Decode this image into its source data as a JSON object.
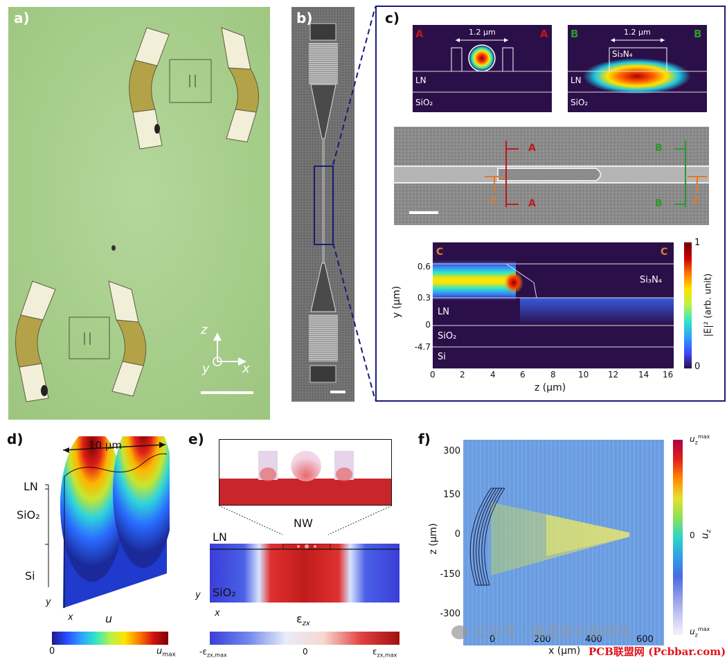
{
  "panel_labels": {
    "a": "a)",
    "b": "b)",
    "c": "c)",
    "d": "d)",
    "e": "e)",
    "f": "f)"
  },
  "panel_a": {
    "axes": {
      "z": "z",
      "y": "y",
      "x": "x"
    }
  },
  "panel_c": {
    "mode_A": {
      "marker_left": "A",
      "marker_right": "A",
      "width_label": "1.2 μm",
      "layers": [
        "LN",
        "SiO₂"
      ]
    },
    "mode_B": {
      "marker_left": "B",
      "marker_right": "B",
      "width_label": "1.2 μm",
      "waveguide": "Si₃N₄",
      "layers": [
        "LN",
        "SiO₂"
      ]
    },
    "sem_markers": {
      "A": "A",
      "B": "B",
      "C": "C"
    },
    "field_plot": {
      "marker_left": "C",
      "marker_right": "C",
      "ylabel": "y (μm)",
      "xlabel": "z (μm)",
      "x_ticks": [
        "0",
        "2",
        "4",
        "6",
        "8",
        "10",
        "12",
        "14",
        "16"
      ],
      "y_ticks": [
        "0.6",
        "0.3",
        "0",
        "-4.7"
      ],
      "layers": [
        "Si₃N₄",
        "LN",
        "SiO₂",
        "Si"
      ],
      "colorbar_label": "|E|² (arb. unit)",
      "colorbar_ticks": [
        "1",
        "0"
      ]
    }
  },
  "panel_d": {
    "width_label": "10 μm",
    "layers": [
      "LN",
      "SiO₂",
      "Si"
    ],
    "axes": {
      "y": "y",
      "x": "x"
    },
    "quantity": "u",
    "colorbar_min": "0",
    "colorbar_max": "u",
    "colorbar_max_sub": "max"
  },
  "panel_e": {
    "nw_label": "NW",
    "layers": [
      "LN",
      "SiO₂"
    ],
    "axes": {
      "y": "y",
      "x": "x"
    },
    "quantity": "ε",
    "quantity_sub": "zx",
    "colorbar_min": "-ε",
    "colorbar_min_sub": "zx,max",
    "colorbar_mid": "0",
    "colorbar_max": "ε",
    "colorbar_max_sub": "zx,max"
  },
  "panel_f": {
    "ylabel": "z (μm)",
    "xlabel": "x (μm)",
    "y_ticks": [
      "300",
      "150",
      "0",
      "-150",
      "-300"
    ],
    "x_ticks": [
      "0",
      "200",
      "400",
      "600"
    ],
    "colorbar_label": "u",
    "colorbar_label_sub": "z",
    "colorbar_top": "u",
    "colorbar_top_sub": "z",
    "colorbar_top_sup": "max",
    "colorbar_mid": "0",
    "colorbar_bottom": "u",
    "colorbar_bottom_sub": "z",
    "colorbar_bottom_sup": "max"
  },
  "watermark": {
    "wechat": "公众号 · 逍遥设计自动化",
    "site": "PCB联盟网 (Pcbbar.com)"
  },
  "colors": {
    "frame": "#1a1a7a",
    "marker_A": "#c0161b",
    "marker_B": "#2a9a2a",
    "marker_C": "#e07a2a",
    "substrate_green": "#a8d08a",
    "mode_bg": "#2b0f49"
  }
}
